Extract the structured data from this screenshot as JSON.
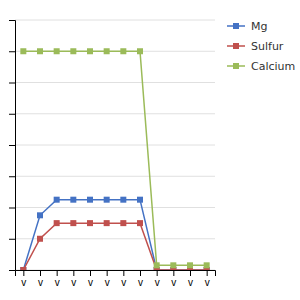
{
  "chart_data": {
    "type": "line",
    "categories": [
      "v",
      "v",
      "v",
      "v",
      "v",
      "v",
      "v",
      "v",
      "v",
      "v",
      "v",
      "v"
    ],
    "series": [
      {
        "name": "Mg",
        "color": "#4472C4",
        "marker": "square",
        "values": [
          0,
          3.5,
          4.5,
          4.5,
          4.5,
          4.5,
          4.5,
          4.5,
          0,
          0,
          0,
          0
        ]
      },
      {
        "name": "Sulfur",
        "color": "#C0504D",
        "marker": "square",
        "values": [
          0,
          2.0,
          3.0,
          3.0,
          3.0,
          3.0,
          3.0,
          3.0,
          0,
          0,
          0,
          0
        ]
      },
      {
        "name": "Calcium",
        "color": "#9BBB59",
        "marker": "square",
        "values": [
          14,
          14,
          14,
          14,
          14,
          14,
          14,
          14,
          0.3,
          0.3,
          0.3,
          0.3
        ]
      }
    ],
    "ylim": [
      0,
      16
    ],
    "yticks": [
      0,
      2,
      4,
      6,
      8,
      10,
      12,
      14,
      16
    ],
    "grid": true,
    "legend": "right",
    "tick_labels": "x"
  }
}
